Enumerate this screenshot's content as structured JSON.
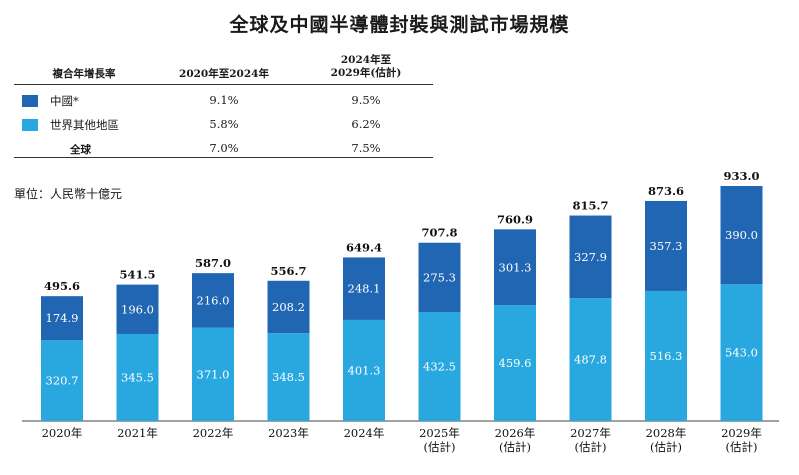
{
  "title": "全球及中國半導體封裝與測試市場規模",
  "cagr_table": {
    "header_label": "複合年增長率",
    "col1": "2020年至2024年",
    "col2_line1": "2024年至",
    "col2_line2": "2029年(估計)",
    "rows": [
      {
        "label": "中國*",
        "v1": "9.1%",
        "v2": "9.5%",
        "color": "#2166b3"
      },
      {
        "label": "世界其他地區",
        "v1": "5.8%",
        "v2": "6.2%",
        "color": "#29a8e0"
      },
      {
        "label": "全球",
        "v1": "7.0%",
        "v2": "7.5%",
        "color": ""
      }
    ]
  },
  "unit_label": "單位：人民幣十億元",
  "chart_data": {
    "type": "bar",
    "stacked": true,
    "categories": [
      [
        "2020年"
      ],
      [
        "2021年"
      ],
      [
        "2022年"
      ],
      [
        "2023年"
      ],
      [
        "2024年"
      ],
      [
        "2025年",
        "(估計)"
      ],
      [
        "2026年",
        "(估計)"
      ],
      [
        "2027年",
        "(估計)"
      ],
      [
        "2028年",
        "(估計)"
      ],
      [
        "2029年",
        "(估計)"
      ]
    ],
    "series": [
      {
        "name": "世界其他地區",
        "color": "#29a8e0",
        "values": [
          320.7,
          345.5,
          371.0,
          348.5,
          401.3,
          432.5,
          459.6,
          487.8,
          516.3,
          543.0
        ]
      },
      {
        "name": "中國*",
        "color": "#2166b3",
        "values": [
          174.9,
          196.0,
          216.0,
          208.2,
          248.1,
          275.3,
          301.3,
          327.9,
          357.3,
          390.0
        ]
      }
    ],
    "totals": [
      495.6,
      541.5,
      587.0,
      556.7,
      649.4,
      707.8,
      760.9,
      815.7,
      873.6,
      933.0
    ],
    "ylim": [
      0,
      933.0
    ]
  }
}
